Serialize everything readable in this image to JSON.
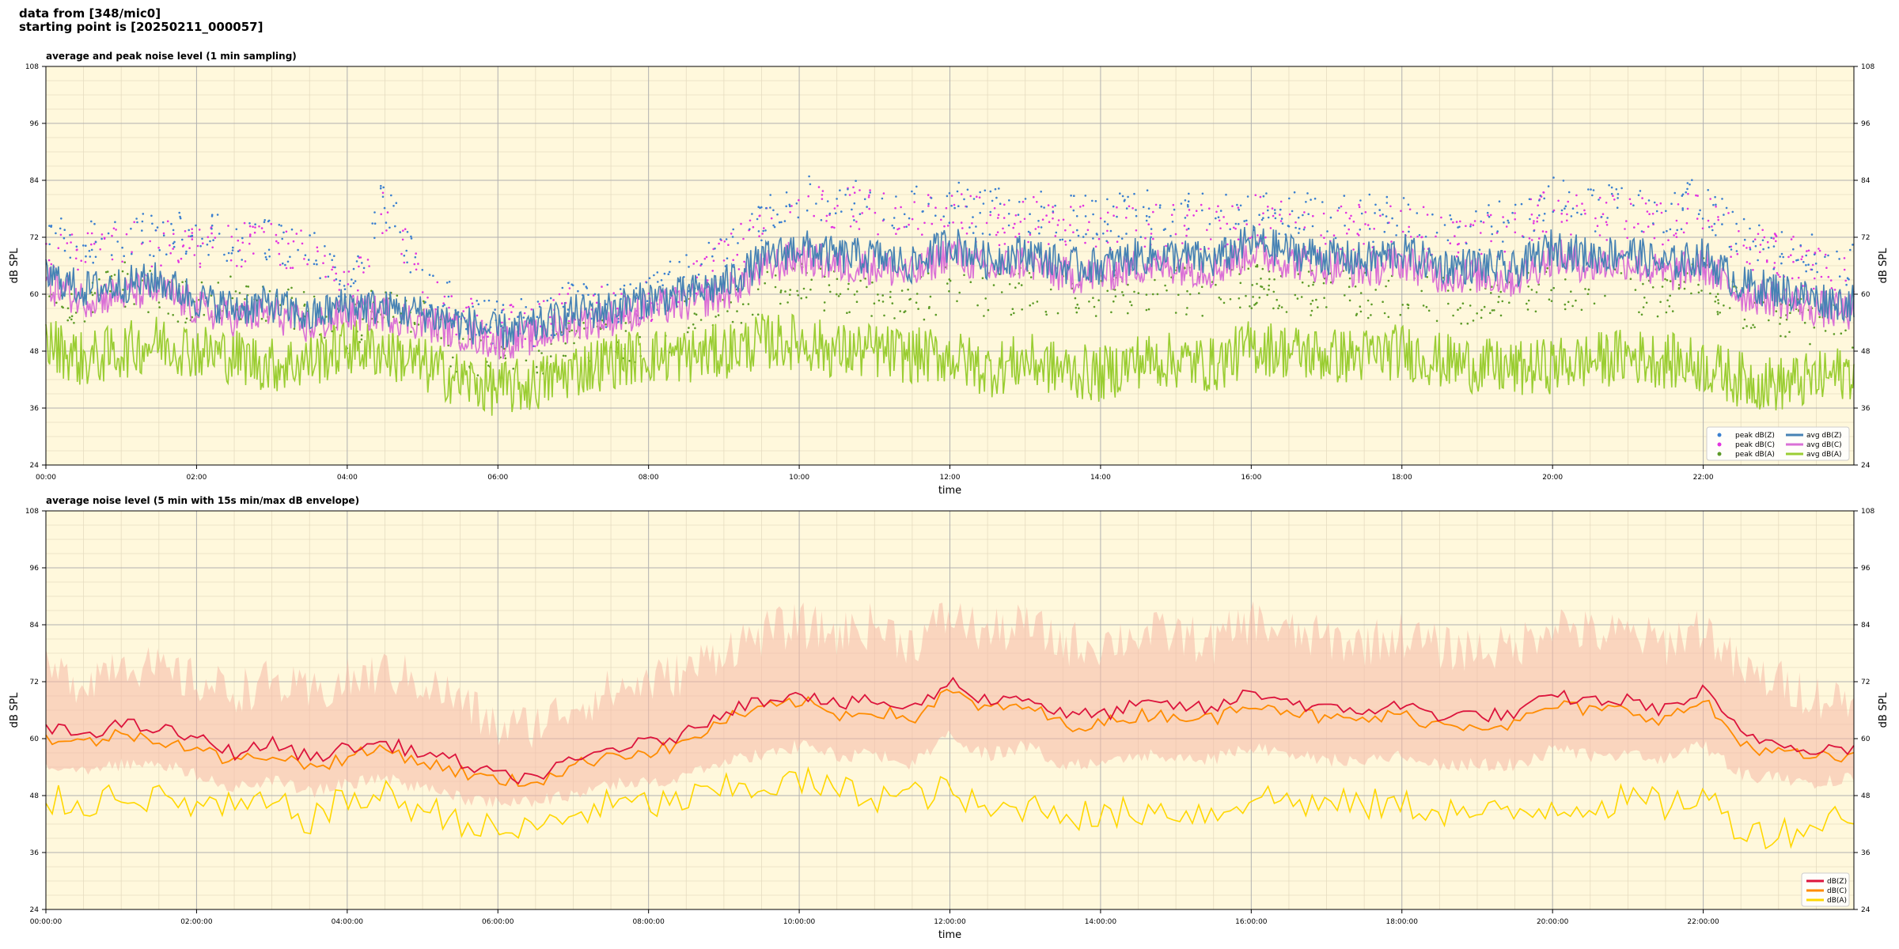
{
  "header": {
    "line1": "data from [348/mic0]",
    "line2": "starting point is [20250211_000057]"
  },
  "colors": {
    "background": "#fff8dc",
    "peak_z": "#3a7fd0",
    "peak_c": "#e233e0",
    "peak_a": "#5c9a27",
    "avg_z": "#4682b4",
    "avg_c": "#da70d6",
    "avg_a": "#9acd32",
    "dbz": "#dc143c",
    "dbc": "#ff8c00",
    "dba": "#ffd700",
    "envelope": "#f6b8a6"
  },
  "chart_data": [
    {
      "type": "line",
      "title": "average and peak noise level (1 min sampling)",
      "xlabel": "time",
      "ylabel": "dB SPL",
      "ylim": [
        24,
        108
      ],
      "xlim_hours": [
        0,
        24
      ],
      "yticks": [
        "24",
        "36",
        "48",
        "60",
        "72",
        "84",
        "96",
        "108"
      ],
      "xticks": [
        "00:00",
        "02:00",
        "04:00",
        "06:00",
        "08:00",
        "10:00",
        "12:00",
        "14:00",
        "16:00",
        "18:00",
        "20:00",
        "22:00"
      ],
      "grid": true,
      "legend_position": "bottom-right",
      "x": [
        0,
        0.5,
        1,
        1.5,
        2,
        2.5,
        3,
        3.5,
        4,
        4.5,
        5,
        5.5,
        6,
        6.5,
        7,
        7.5,
        8,
        8.5,
        9,
        9.5,
        10,
        10.5,
        11,
        11.5,
        12,
        12.5,
        13,
        13.5,
        14,
        14.5,
        15,
        15.5,
        16,
        16.5,
        17,
        17.5,
        18,
        18.5,
        19,
        19.5,
        20,
        20.5,
        21,
        21.5,
        22,
        22.5,
        23,
        23.5,
        24
      ],
      "series": [
        {
          "name": "peak dB(Z)",
          "kind": "scatter",
          "values": [
            73,
            71,
            72,
            73,
            72,
            72,
            71,
            70,
            60,
            80,
            62,
            56,
            54,
            54,
            58,
            58,
            60,
            64,
            68,
            76,
            80,
            80,
            79,
            78,
            79,
            77,
            78,
            76,
            76,
            77,
            77,
            76,
            78,
            77,
            76,
            76,
            76,
            75,
            74,
            75,
            80,
            78,
            78,
            77,
            80,
            72,
            70,
            68,
            66
          ]
        },
        {
          "name": "peak dB(C)",
          "kind": "scatter",
          "values": [
            71,
            69,
            70,
            71,
            70,
            71,
            70,
            69,
            59,
            78,
            61,
            55,
            53,
            53,
            57,
            57,
            59,
            63,
            67,
            74,
            78,
            78,
            77,
            76,
            77,
            75,
            76,
            74,
            74,
            75,
            75,
            74,
            76,
            75,
            74,
            74,
            74,
            73,
            72,
            73,
            78,
            76,
            76,
            75,
            78,
            70,
            68,
            66,
            64
          ]
        },
        {
          "name": "peak dB(A)",
          "kind": "scatter",
          "values": [
            60,
            58,
            62,
            60,
            58,
            59,
            58,
            57,
            52,
            60,
            54,
            48,
            46,
            47,
            50,
            50,
            51,
            54,
            56,
            60,
            62,
            61,
            60,
            59,
            61,
            60,
            61,
            60,
            60,
            61,
            61,
            60,
            62,
            61,
            60,
            60,
            60,
            59,
            58,
            59,
            62,
            61,
            61,
            60,
            63,
            57,
            55,
            54,
            52
          ]
        },
        {
          "name": "avg dB(Z)",
          "kind": "line",
          "values": [
            64,
            61,
            62,
            63,
            59,
            57,
            58,
            55,
            58,
            57,
            56,
            54,
            52,
            53,
            56,
            57,
            59,
            60,
            62,
            67,
            70,
            68,
            68,
            66,
            71,
            67,
            69,
            66,
            66,
            68,
            68,
            67,
            71,
            69,
            68,
            67,
            69,
            66,
            66,
            65,
            70,
            68,
            69,
            66,
            68,
            62,
            61,
            59,
            58
          ]
        },
        {
          "name": "avg dB(C)",
          "kind": "line",
          "values": [
            62,
            59,
            60,
            61,
            57,
            55,
            56,
            53,
            56,
            56,
            54,
            52,
            50,
            51,
            54,
            55,
            57,
            58,
            60,
            65,
            68,
            66,
            66,
            64,
            69,
            65,
            67,
            64,
            64,
            66,
            66,
            65,
            69,
            67,
            66,
            65,
            67,
            64,
            64,
            63,
            68,
            66,
            67,
            64,
            66,
            60,
            59,
            57,
            56
          ]
        },
        {
          "name": "avg dB(A)",
          "kind": "line",
          "values": [
            50,
            46,
            48,
            50,
            48,
            47,
            45,
            46,
            49,
            48,
            45,
            42,
            40,
            41,
            44,
            46,
            47,
            47,
            48,
            50,
            50,
            48,
            48,
            47,
            47,
            44,
            46,
            44,
            43,
            46,
            46,
            45,
            49,
            48,
            47,
            47,
            48,
            46,
            45,
            44,
            45,
            46,
            47,
            46,
            45,
            42,
            41,
            42,
            44
          ]
        }
      ]
    },
    {
      "type": "line",
      "title": "average noise level (5 min with 15s min/max dB envelope)",
      "xlabel": "time",
      "ylabel": "dB SPL",
      "ylim": [
        24,
        108
      ],
      "xlim_hours": [
        0,
        24
      ],
      "yticks": [
        "24",
        "36",
        "48",
        "60",
        "72",
        "84",
        "96",
        "108"
      ],
      "xticks": [
        "00:00:00",
        "02:00:00",
        "04:00:00",
        "06:00:00",
        "08:00:00",
        "10:00:00",
        "12:00:00",
        "14:00:00",
        "16:00:00",
        "18:00:00",
        "20:00:00",
        "22:00:00"
      ],
      "grid": true,
      "legend_position": "bottom-right",
      "x": [
        0,
        0.5,
        1,
        1.5,
        2,
        2.5,
        3,
        3.5,
        4,
        4.5,
        5,
        5.5,
        6,
        6.5,
        7,
        7.5,
        8,
        8.5,
        9,
        9.5,
        10,
        10.5,
        11,
        11.5,
        12,
        12.5,
        13,
        13.5,
        14,
        14.5,
        15,
        15.5,
        16,
        16.5,
        17,
        17.5,
        18,
        18.5,
        19,
        19.5,
        20,
        20.5,
        21,
        21.5,
        22,
        22.5,
        23,
        23.5,
        24
      ],
      "series": [
        {
          "name": "dB(Z)",
          "kind": "line",
          "values": [
            62,
            61,
            63,
            62,
            60,
            57,
            59,
            56,
            58,
            59,
            57,
            55,
            52,
            52,
            55,
            58,
            59,
            61,
            66,
            68,
            70,
            67,
            68,
            66,
            72,
            68,
            69,
            65,
            65,
            67,
            67,
            66,
            70,
            68,
            66,
            66,
            67,
            65,
            65,
            65,
            69,
            68,
            68,
            66,
            70,
            61,
            59,
            58,
            58
          ]
        },
        {
          "name": "dB(C)",
          "kind": "line",
          "values": [
            60,
            59,
            61,
            60,
            58,
            55,
            57,
            54,
            56,
            58,
            55,
            53,
            51,
            51,
            54,
            57,
            57,
            59,
            64,
            66,
            68,
            65,
            66,
            64,
            70,
            66,
            67,
            63,
            63,
            65,
            65,
            64,
            68,
            66,
            64,
            64,
            65,
            63,
            63,
            63,
            67,
            66,
            66,
            64,
            68,
            59,
            57,
            56,
            56
          ]
        },
        {
          "name": "dB(A)",
          "kind": "line",
          "values": [
            47,
            46,
            49,
            47,
            46,
            45,
            46,
            43,
            47,
            48,
            45,
            43,
            40,
            41,
            44,
            46,
            46,
            47,
            49,
            50,
            51,
            49,
            48,
            48,
            49,
            44,
            46,
            45,
            43,
            45,
            45,
            44,
            48,
            47,
            46,
            46,
            46,
            45,
            44,
            44,
            46,
            46,
            47,
            46,
            48,
            41,
            40,
            42,
            45
          ]
        },
        {
          "name": "envelope-max",
          "kind": "band",
          "values": [
            72,
            70,
            75,
            72,
            70,
            68,
            70,
            67,
            70,
            72,
            70,
            66,
            60,
            61,
            65,
            68,
            70,
            72,
            77,
            80,
            82,
            80,
            82,
            78,
            84,
            80,
            82,
            78,
            78,
            80,
            80,
            78,
            83,
            80,
            79,
            78,
            80,
            77,
            77,
            77,
            83,
            80,
            80,
            78,
            82,
            72,
            70,
            67,
            66
          ]
        },
        {
          "name": "envelope-min",
          "kind": "band",
          "values": [
            56,
            55,
            56,
            56,
            54,
            51,
            53,
            50,
            52,
            53,
            51,
            49,
            48,
            48,
            50,
            52,
            52,
            54,
            57,
            58,
            60,
            58,
            58,
            56,
            62,
            58,
            60,
            56,
            56,
            58,
            58,
            57,
            60,
            58,
            57,
            57,
            58,
            56,
            56,
            56,
            59,
            58,
            58,
            57,
            60,
            54,
            53,
            52,
            53
          ]
        }
      ]
    }
  ]
}
